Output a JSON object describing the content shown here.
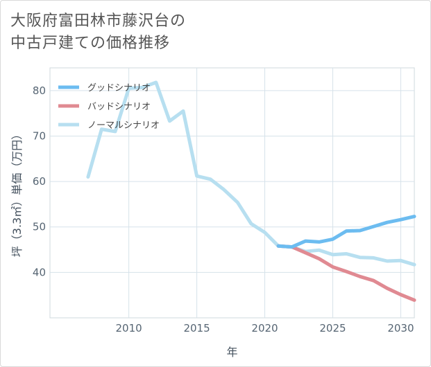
{
  "title": "大阪府富田林市藤沢台の\n中古戸建ての価格推移",
  "chart_data": {
    "type": "line",
    "xlabel": "年",
    "ylabel": "坪（3.3㎡）単価（万円）",
    "xlim": [
      2004.2,
      2031.0
    ],
    "ylim": [
      30.0,
      85.0
    ],
    "x_ticks": [
      2010,
      2015,
      2020,
      2025,
      2030
    ],
    "y_ticks": [
      40,
      50,
      60,
      70,
      80
    ],
    "grid": true,
    "legend_position": "top-left",
    "series": [
      {
        "name": "グッドシナリオ",
        "color": "#6cbcf0",
        "x": [
          2021,
          2022,
          2023,
          2024,
          2025,
          2026,
          2027,
          2028,
          2029,
          2030,
          2031
        ],
        "y": [
          45.8,
          45.6,
          46.9,
          46.7,
          47.3,
          49.1,
          49.2,
          50.1,
          51.0,
          51.6,
          52.3
        ]
      },
      {
        "name": "バッドシナリオ",
        "color": "#e08a92",
        "x": [
          2021,
          2022,
          2023,
          2024,
          2025,
          2026,
          2027,
          2028,
          2029,
          2030,
          2031
        ],
        "y": [
          45.8,
          45.6,
          44.3,
          43.0,
          41.2,
          40.2,
          39.1,
          38.2,
          36.5,
          35.1,
          33.9
        ]
      },
      {
        "name": "ノーマルシナリオ",
        "color": "#b7dff0",
        "x": [
          2007,
          2008,
          2009,
          2010,
          2011,
          2012,
          2013,
          2014,
          2015,
          2016,
          2017,
          2018,
          2019,
          2020,
          2021,
          2022,
          2023,
          2024,
          2025,
          2026,
          2027,
          2028,
          2029,
          2030,
          2031
        ],
        "y": [
          61.0,
          71.5,
          71.0,
          80.5,
          80.7,
          81.8,
          73.3,
          75.5,
          61.2,
          60.5,
          58.2,
          55.4,
          50.7,
          48.8,
          45.8,
          45.6,
          44.6,
          44.9,
          43.9,
          44.1,
          43.3,
          43.2,
          42.5,
          42.6,
          41.7
        ]
      }
    ]
  }
}
